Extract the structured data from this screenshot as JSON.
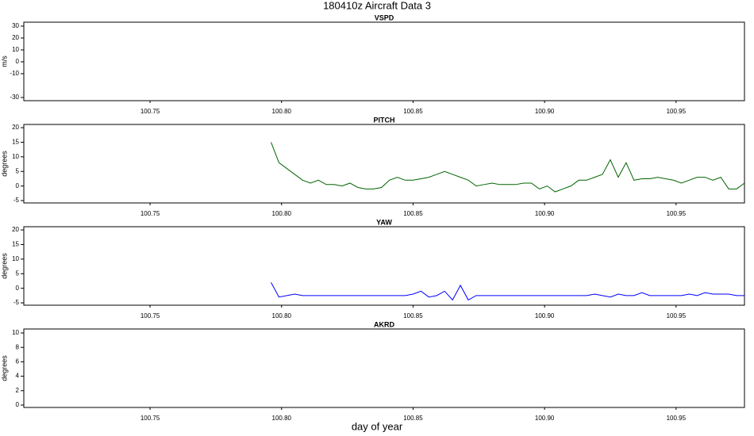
{
  "title": "180410z   Aircraft Data 3",
  "xlabel": "day of year",
  "chart_data": [
    {
      "type": "line",
      "title": "VSPD",
      "ylabel": "m/s",
      "xlim": [
        100.702,
        100.976
      ],
      "ylim": [
        -32.7,
        33.3
      ],
      "xticks": [
        100.75,
        {
          "value": 100.8,
          "label": "100.80"
        },
        100.85,
        {
          "value": 100.9,
          "label": "100.90"
        },
        100.95
      ],
      "yticks": [
        -30,
        -10,
        0,
        10,
        20,
        30
      ],
      "series": []
    },
    {
      "type": "line",
      "title": "PITCH",
      "ylabel": "degrees",
      "xlim": [
        100.702,
        100.976
      ],
      "ylim": [
        -5.8,
        21.1
      ],
      "xticks": [
        100.75,
        {
          "value": 100.8,
          "label": "100.80"
        },
        100.85,
        {
          "value": 100.9,
          "label": "100.90"
        },
        100.95
      ],
      "yticks": [
        -5,
        0,
        5,
        10,
        15,
        20
      ],
      "x": [
        100.796,
        100.799,
        100.802,
        100.805,
        100.808,
        100.811,
        100.814,
        100.817,
        100.82,
        100.823,
        100.826,
        100.829,
        100.832,
        100.835,
        100.838,
        100.841,
        100.844,
        100.847,
        100.85,
        100.853,
        100.856,
        100.859,
        100.862,
        100.865,
        100.868,
        100.871,
        100.874,
        100.877,
        100.88,
        100.883,
        100.886,
        100.889,
        100.892,
        100.895,
        100.898,
        100.901,
        100.904,
        100.907,
        100.91,
        100.913,
        100.916,
        100.919,
        100.922,
        100.925,
        100.928,
        100.931,
        100.934,
        100.937,
        100.94,
        100.943,
        100.946,
        100.949,
        100.952,
        100.955,
        100.958,
        100.961,
        100.964,
        100.967,
        100.97,
        100.973,
        100.976
      ],
      "series": [
        {
          "color": "#006400",
          "values": [
            15,
            8,
            6,
            4,
            2,
            1,
            2,
            0.5,
            0.5,
            0,
            1,
            -0.5,
            -1,
            -1,
            -0.5,
            2,
            3,
            2,
            2,
            2.5,
            3,
            4,
            5,
            4,
            3,
            2,
            0,
            0.5,
            1,
            0.5,
            0.5,
            0.5,
            1,
            1,
            -1,
            0,
            -2,
            -1,
            0,
            2,
            2,
            3,
            4,
            9,
            3,
            8,
            2,
            2.5,
            2.5,
            3,
            2.5,
            2,
            1,
            2,
            3,
            3,
            2,
            3,
            -1,
            -1,
            1
          ]
        }
      ]
    },
    {
      "type": "line",
      "title": "YAW",
      "ylabel": "degrees",
      "xlim": [
        100.702,
        100.976
      ],
      "ylim": [
        -5.8,
        21.1
      ],
      "xticks": [
        100.75,
        {
          "value": 100.8,
          "label": "100.80"
        },
        100.85,
        {
          "value": 100.9,
          "label": "100.90"
        },
        100.95
      ],
      "yticks": [
        -5,
        0,
        5,
        10,
        15,
        20
      ],
      "x": [
        100.796,
        100.799,
        100.802,
        100.805,
        100.808,
        100.811,
        100.814,
        100.817,
        100.82,
        100.823,
        100.826,
        100.829,
        100.832,
        100.835,
        100.838,
        100.841,
        100.844,
        100.847,
        100.85,
        100.853,
        100.856,
        100.859,
        100.862,
        100.865,
        100.868,
        100.871,
        100.874,
        100.877,
        100.88,
        100.883,
        100.886,
        100.889,
        100.892,
        100.895,
        100.898,
        100.901,
        100.904,
        100.907,
        100.91,
        100.913,
        100.916,
        100.919,
        100.922,
        100.925,
        100.928,
        100.931,
        100.934,
        100.937,
        100.94,
        100.943,
        100.946,
        100.949,
        100.952,
        100.955,
        100.958,
        100.961,
        100.964,
        100.967,
        100.97,
        100.973,
        100.976
      ],
      "series": [
        {
          "color": "#0000ff",
          "values": [
            2,
            -3,
            -2.5,
            -2,
            -2.5,
            -2.5,
            -2.5,
            -2.5,
            -2.5,
            -2.5,
            -2.5,
            -2.5,
            -2.5,
            -2.5,
            -2.5,
            -2.5,
            -2.5,
            -2.5,
            -2,
            -1,
            -3,
            -2.5,
            -1,
            -4,
            1,
            -4,
            -2.5,
            -2.5,
            -2.5,
            -2.5,
            -2.5,
            -2.5,
            -2.5,
            -2.5,
            -2.5,
            -2.5,
            -2.5,
            -2.5,
            -2.5,
            -2.5,
            -2.5,
            -2,
            -2.5,
            -3,
            -2,
            -2.5,
            -2.5,
            -1.5,
            -2.5,
            -2.5,
            -2.5,
            -2.5,
            -2.5,
            -2,
            -2.5,
            -1.5,
            -2,
            -2,
            -2,
            -2.5,
            -2.5
          ]
        }
      ]
    },
    {
      "type": "line",
      "title": "AKRD",
      "ylabel": "degrees",
      "xlim": [
        100.702,
        100.976
      ],
      "ylim": [
        -0.33,
        10.55
      ],
      "xticks": [
        100.75,
        {
          "value": 100.8,
          "label": "100.80"
        },
        100.85,
        {
          "value": 100.9,
          "label": "100.90"
        },
        100.95
      ],
      "yticks": [
        0,
        2,
        4,
        6,
        8,
        10
      ],
      "series": []
    }
  ]
}
